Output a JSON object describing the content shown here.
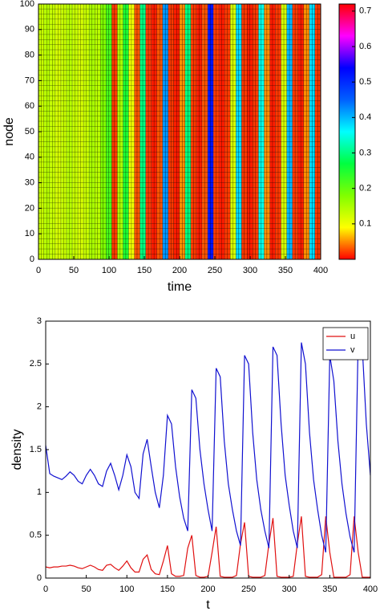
{
  "chart_data": [
    {
      "type": "heatmap",
      "xlabel": "time",
      "ylabel": "node",
      "x": [
        4,
        12,
        20,
        28,
        36,
        44,
        52,
        60,
        68,
        76,
        84,
        92,
        100,
        108,
        116,
        124,
        132,
        140,
        148,
        156,
        164,
        172,
        180,
        188,
        196,
        204,
        212,
        220,
        228,
        236,
        244,
        252,
        260,
        268,
        276,
        284,
        292,
        300,
        308,
        316,
        324,
        332,
        340,
        348,
        356,
        364,
        372,
        380,
        388,
        396
      ],
      "values": [
        0.13,
        0.14,
        0.13,
        0.12,
        0.13,
        0.14,
        0.13,
        0.12,
        0.13,
        0.15,
        0.14,
        0.18,
        0.22,
        0.02,
        0.15,
        0.25,
        0.1,
        0.03,
        0.3,
        0.02,
        0.01,
        0.03,
        0.42,
        0.02,
        0.01,
        0.05,
        0.3,
        0.02,
        0.01,
        0.03,
        0.52,
        0.02,
        0.01,
        0.02,
        0.12,
        0.38,
        0.02,
        0.01,
        0.02,
        0.35,
        0.05,
        0.01,
        0.02,
        0.12,
        0.4,
        0.02,
        0.01,
        0.05,
        0.38,
        0.02
      ],
      "xlim": [
        0,
        400
      ],
      "xticks": [
        0,
        50,
        100,
        150,
        200,
        250,
        300,
        350,
        400
      ],
      "ylim": [
        0,
        100
      ],
      "yticks": [
        0,
        10,
        20,
        30,
        40,
        50,
        60,
        70,
        80,
        90,
        100
      ],
      "colorbar": {
        "lim": [
          0,
          0.72
        ],
        "ticks": [
          0.1,
          0.2,
          0.3,
          0.4,
          0.5,
          0.6,
          0.7
        ],
        "colormap": [
          "#ff0000",
          "#ffff00",
          "#80ff00",
          "#00ff40",
          "#00ffff",
          "#0060ff",
          "#0000ff",
          "#ff00ff",
          "#ff0000"
        ]
      }
    },
    {
      "type": "line",
      "xlabel": "t",
      "ylabel": "density",
      "x": [
        0,
        5,
        10,
        15,
        20,
        25,
        30,
        35,
        40,
        45,
        50,
        55,
        60,
        65,
        70,
        75,
        80,
        85,
        90,
        95,
        100,
        105,
        110,
        115,
        120,
        125,
        130,
        135,
        140,
        145,
        150,
        155,
        160,
        165,
        170,
        175,
        180,
        185,
        190,
        195,
        200,
        205,
        210,
        215,
        220,
        225,
        230,
        235,
        240,
        245,
        250,
        255,
        260,
        265,
        270,
        275,
        280,
        285,
        290,
        295,
        300,
        305,
        310,
        315,
        320,
        325,
        330,
        335,
        340,
        345,
        350,
        355,
        360,
        365,
        370,
        375,
        380,
        385,
        390,
        395,
        400
      ],
      "series": [
        {
          "name": "u",
          "color": "#e01010",
          "values": [
            0.13,
            0.12,
            0.13,
            0.13,
            0.14,
            0.14,
            0.15,
            0.14,
            0.12,
            0.11,
            0.13,
            0.15,
            0.13,
            0.1,
            0.09,
            0.15,
            0.16,
            0.12,
            0.09,
            0.14,
            0.2,
            0.12,
            0.07,
            0.07,
            0.22,
            0.27,
            0.1,
            0.05,
            0.04,
            0.2,
            0.38,
            0.05,
            0.02,
            0.02,
            0.03,
            0.35,
            0.5,
            0.03,
            0.01,
            0.01,
            0.02,
            0.3,
            0.6,
            0.02,
            0.01,
            0.01,
            0.01,
            0.03,
            0.4,
            0.65,
            0.02,
            0.01,
            0.01,
            0.01,
            0.03,
            0.4,
            0.7,
            0.02,
            0.01,
            0.01,
            0.01,
            0.02,
            0.4,
            0.72,
            0.02,
            0.01,
            0.01,
            0.01,
            0.04,
            0.72,
            0.3,
            0.01,
            0.01,
            0.01,
            0.01,
            0.04,
            0.72,
            0.3,
            0.01,
            0.01,
            0.01
          ]
        },
        {
          "name": "v",
          "color": "#1010d0",
          "values": [
            1.55,
            1.22,
            1.19,
            1.17,
            1.15,
            1.19,
            1.24,
            1.2,
            1.13,
            1.1,
            1.2,
            1.27,
            1.2,
            1.1,
            1.07,
            1.25,
            1.34,
            1.2,
            1.03,
            1.2,
            1.44,
            1.3,
            1.0,
            0.93,
            1.45,
            1.62,
            1.3,
            1.0,
            0.82,
            1.2,
            1.9,
            1.8,
            1.3,
            0.95,
            0.7,
            0.55,
            2.2,
            2.1,
            1.5,
            1.1,
            0.8,
            0.55,
            2.45,
            2.35,
            1.6,
            1.1,
            0.8,
            0.55,
            0.38,
            2.6,
            2.5,
            1.7,
            1.15,
            0.8,
            0.55,
            0.35,
            2.7,
            2.6,
            1.8,
            1.2,
            0.85,
            0.55,
            0.35,
            2.75,
            2.5,
            1.7,
            1.15,
            0.8,
            0.5,
            0.3,
            2.6,
            2.3,
            1.6,
            1.1,
            0.75,
            0.48,
            0.3,
            2.8,
            2.7,
            1.8,
            1.2
          ]
        }
      ],
      "xlim": [
        0,
        400
      ],
      "xticks": [
        0,
        50,
        100,
        150,
        200,
        250,
        300,
        350,
        400
      ],
      "ylim": [
        0,
        3
      ],
      "yticks": [
        0,
        0.5,
        1,
        1.5,
        2,
        2.5,
        3
      ],
      "legend": "upper right"
    }
  ]
}
